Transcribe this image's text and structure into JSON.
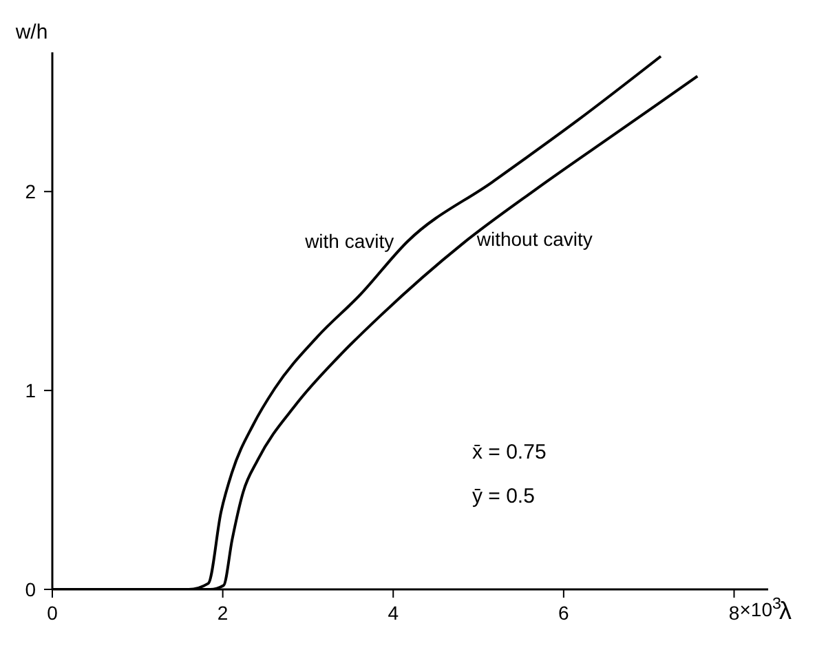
{
  "chart_data": {
    "type": "line",
    "xlabel": "λ",
    "ylabel": "w/h",
    "xlim": [
      0,
      8.4
    ],
    "ylim": [
      0,
      2.7
    ],
    "xticks": [
      0,
      2,
      4,
      6,
      8
    ],
    "yticks": [
      0,
      1,
      2
    ],
    "grid": false,
    "legend": false,
    "marker": "none",
    "line_style": "solid",
    "series": [
      {
        "color": "#000000",
        "x": [
          0,
          1.6,
          1.83,
          1.98,
          2.11,
          2.36,
          2.61,
          3.11,
          3.61,
          4.17,
          5.17,
          6.17,
          7.14
        ],
        "values": [
          0,
          0,
          0.03,
          0.39,
          0.59,
          0.83,
          1.01,
          1.27,
          1.48,
          1.75,
          2.05,
          2.36,
          2.68
        ]
      },
      {
        "color": "#000000",
        "x": [
          0,
          1.85,
          2.01,
          2.11,
          2.24,
          2.41,
          2.86,
          3.36,
          3.86,
          4.82,
          5.67,
          6.67,
          7.57
        ],
        "values": [
          0,
          0,
          0.02,
          0.25,
          0.49,
          0.65,
          0.93,
          1.17,
          1.38,
          1.74,
          2.01,
          2.31,
          2.58
        ]
      }
    ],
    "annotations": [
      {
        "text": "with cavity",
        "x": 4.17,
        "y": 1.75
      },
      {
        "text": "without cavity",
        "x": 4.82,
        "y": 1.76
      },
      "x̄ = 0.75",
      "ȳ = 0.5",
      "×10$^{3}$"
    ]
  }
}
